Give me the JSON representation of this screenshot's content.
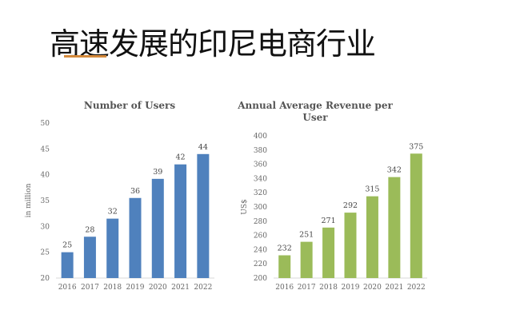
{
  "page": {
    "title": "高速发展的印尼电商行业",
    "accent_color": "#d48a3c"
  },
  "chart_data": [
    {
      "type": "bar",
      "title": "Number of Users",
      "title_lines": [
        "Number of Users"
      ],
      "xlabel": "",
      "ylabel": "in million",
      "categories": [
        "2016",
        "2017",
        "2018",
        "2019",
        "2020",
        "2021",
        "2022"
      ],
      "values": [
        25,
        28,
        31.5,
        35.5,
        39.2,
        42,
        44
      ],
      "data_labels": [
        "25",
        "28",
        "32",
        "36",
        "39",
        "42",
        "44"
      ],
      "ylim": [
        20,
        50
      ],
      "yticks": [
        20,
        25,
        30,
        35,
        40,
        45,
        50
      ],
      "color": "#4f81bd",
      "grid": false,
      "legend": "none"
    },
    {
      "type": "bar",
      "title": "Annual Average Revenue per User",
      "title_lines": [
        "Annual Average Revenue per",
        "User"
      ],
      "xlabel": "",
      "ylabel": "US$",
      "categories": [
        "2016",
        "2017",
        "2018",
        "2019",
        "2020",
        "2021",
        "2022"
      ],
      "values": [
        232,
        251,
        271,
        292,
        315,
        342,
        375
      ],
      "data_labels": [
        "232",
        "251",
        "271",
        "292",
        "315",
        "342",
        "375"
      ],
      "ylim": [
        200,
        400
      ],
      "yticks": [
        200,
        220,
        240,
        260,
        280,
        300,
        320,
        340,
        360,
        380,
        400
      ],
      "color": "#9bbb59",
      "grid": false,
      "legend": "none"
    }
  ]
}
